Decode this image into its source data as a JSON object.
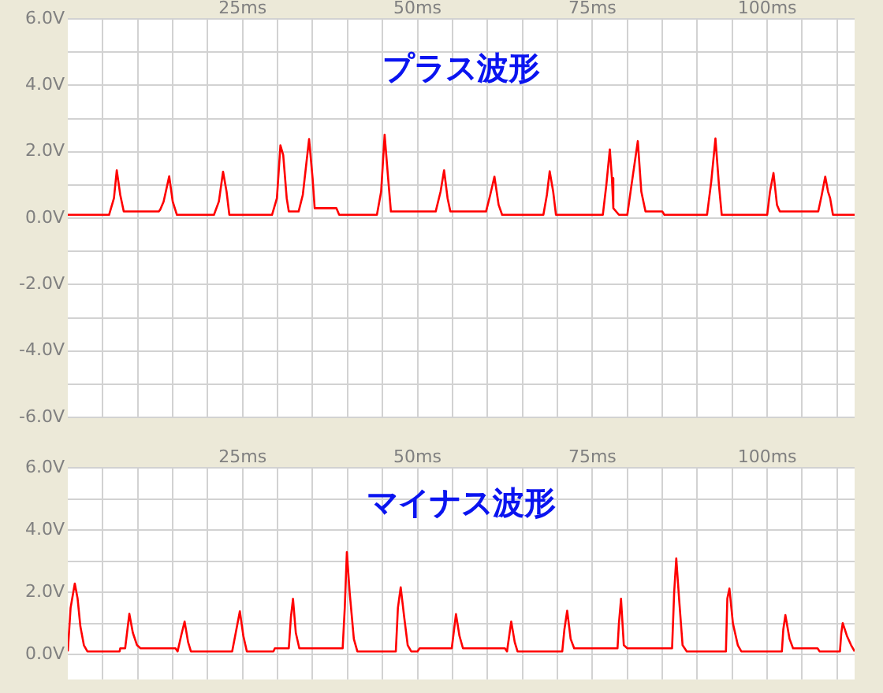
{
  "chart_data": [
    {
      "type": "line",
      "title": "プラス波形",
      "x": [
        0,
        5.9,
        6.6,
        7.0,
        7.5,
        8.0,
        13.0,
        13.2,
        13.7,
        14.5,
        15.0,
        15.6,
        20.9,
        21.6,
        22.2,
        22.7,
        23.1,
        29.2,
        29.9,
        30.4,
        30.8,
        31.3,
        31.6,
        33.0,
        33.6,
        34.5,
        35.0,
        35.3,
        38.4,
        38.8,
        44.2,
        44.8,
        45.3,
        45.8,
        46.2,
        52.6,
        53.3,
        53.8,
        54.3,
        54.7,
        59.8,
        60.4,
        61.0,
        61.6,
        62.1,
        68.0,
        68.5,
        68.9,
        69.4,
        69.8,
        76.5,
        77.0,
        77.5,
        77.8,
        78.0,
        78.8,
        80.0,
        80.6,
        81.5,
        82.0,
        82.6,
        85.0,
        85.3,
        91.4,
        92.0,
        92.6,
        93.1,
        93.5,
        100.0,
        100.4,
        100.9,
        101.4,
        101.8,
        107.3,
        107.8,
        108.3,
        108.7,
        109.0,
        109.4,
        112.5
      ],
      "series": [
        {
          "color": "#ff0000",
          "values": [
            0.1,
            0.1,
            0.6,
            1.44,
            0.7,
            0.2,
            0.2,
            0.25,
            0.5,
            1.26,
            0.5,
            0.1,
            0.1,
            0.5,
            1.4,
            0.8,
            0.1,
            0.1,
            0.6,
            2.19,
            1.9,
            0.6,
            0.2,
            0.2,
            0.7,
            2.38,
            1.2,
            0.3,
            0.3,
            0.1,
            0.1,
            0.8,
            2.51,
            1.2,
            0.2,
            0.2,
            0.8,
            1.44,
            0.6,
            0.2,
            0.2,
            0.7,
            1.25,
            0.4,
            0.1,
            0.1,
            0.7,
            1.41,
            0.8,
            0.1,
            0.1,
            1.0,
            2.07,
            1.2,
            0.3,
            0.1,
            0.1,
            1.0,
            2.32,
            0.8,
            0.2,
            0.2,
            0.1,
            0.1,
            1.1,
            2.4,
            1.0,
            0.1,
            0.1,
            0.8,
            1.36,
            0.4,
            0.2,
            0.2,
            0.7,
            1.25,
            0.8,
            0.6,
            0.1,
            0.1
          ]
        }
      ],
      "xlim": [
        0,
        112.5
      ],
      "xticks": [
        {
          "value": 5,
          "label": null
        },
        {
          "value": 10,
          "label": null
        },
        {
          "value": 15,
          "label": null
        },
        {
          "value": 20,
          "label": null
        },
        {
          "value": 25,
          "label": "25ms"
        },
        {
          "value": 30,
          "label": null
        },
        {
          "value": 35,
          "label": null
        },
        {
          "value": 40,
          "label": null
        },
        {
          "value": 45,
          "label": null
        },
        {
          "value": 50,
          "label": "50ms"
        },
        {
          "value": 55,
          "label": null
        },
        {
          "value": 60,
          "label": null
        },
        {
          "value": 65,
          "label": null
        },
        {
          "value": 70,
          "label": null
        },
        {
          "value": 75,
          "label": "75ms"
        },
        {
          "value": 80,
          "label": null
        },
        {
          "value": 85,
          "label": null
        },
        {
          "value": 90,
          "label": null
        },
        {
          "value": 95,
          "label": null
        },
        {
          "value": 100,
          "label": "100ms"
        },
        {
          "value": 105,
          "label": null
        },
        {
          "value": 110,
          "label": null
        }
      ],
      "ylim": [
        -6,
        6
      ],
      "yticks": [
        {
          "value": -6,
          "label": "-6.0V"
        },
        {
          "value": -5,
          "label": null
        },
        {
          "value": -4,
          "label": "-4.0V"
        },
        {
          "value": -3,
          "label": null
        },
        {
          "value": -2,
          "label": "-2.0V"
        },
        {
          "value": -1,
          "label": null
        },
        {
          "value": 0,
          "label": "0.0V"
        },
        {
          "value": 1,
          "label": null
        },
        {
          "value": 2,
          "label": "2.0V"
        },
        {
          "value": 3,
          "label": null
        },
        {
          "value": 4,
          "label": "4.0V"
        },
        {
          "value": 5,
          "label": null
        },
        {
          "value": 6,
          "label": "6.0V"
        }
      ],
      "grid": true,
      "marker": "none"
    },
    {
      "type": "line",
      "title": "マイナス波形",
      "x": [
        0,
        0.4,
        1.0,
        1.4,
        1.8,
        2.3,
        2.8,
        7.4,
        7.5,
        8.2,
        8.8,
        9.3,
        9.9,
        10.4,
        15.4,
        15.7,
        16.2,
        16.7,
        17.2,
        17.6,
        23.5,
        24.1,
        24.6,
        25.1,
        25.6,
        29.4,
        29.6,
        31.6,
        31.9,
        32.2,
        32.6,
        33.1,
        39.3,
        39.6,
        39.9,
        40.3,
        40.9,
        41.4,
        46.9,
        47.2,
        47.6,
        48.1,
        48.6,
        49.1,
        50.0,
        50.3,
        54.9,
        55.5,
        56.0,
        56.5,
        62.5,
        62.8,
        63.4,
        63.9,
        64.3,
        70.7,
        71.0,
        71.4,
        71.9,
        72.4,
        78.6,
        78.8,
        79.1,
        79.5,
        80.0,
        86.4,
        86.7,
        87.0,
        87.4,
        87.9,
        88.5,
        94.1,
        94.3,
        94.6,
        95.1,
        95.8,
        96.3,
        102.1,
        102.3,
        102.6,
        103.2,
        103.7,
        107.2,
        107.5,
        110.4,
        110.6,
        110.8,
        111.4,
        112.0,
        112.5
      ],
      "series": [
        {
          "color": "#ff0000",
          "values": [
            0.1,
            1.5,
            2.28,
            1.8,
            0.9,
            0.3,
            0.1,
            0.1,
            0.2,
            0.2,
            1.31,
            0.7,
            0.3,
            0.2,
            0.2,
            0.1,
            0.6,
            1.06,
            0.4,
            0.1,
            0.1,
            0.8,
            1.39,
            0.6,
            0.1,
            0.1,
            0.2,
            0.2,
            1.2,
            1.79,
            0.7,
            0.2,
            0.2,
            1.5,
            3.29,
            2.0,
            0.5,
            0.1,
            0.1,
            1.5,
            2.16,
            1.2,
            0.3,
            0.1,
            0.1,
            0.2,
            0.2,
            1.3,
            0.6,
            0.2,
            0.2,
            0.1,
            1.06,
            0.4,
            0.1,
            0.1,
            0.8,
            1.41,
            0.5,
            0.2,
            0.2,
            1.0,
            1.79,
            0.3,
            0.2,
            0.2,
            2.0,
            3.09,
            1.8,
            0.3,
            0.1,
            0.1,
            1.8,
            2.12,
            1.0,
            0.3,
            0.1,
            0.1,
            0.8,
            1.27,
            0.5,
            0.2,
            0.2,
            0.1,
            0.1,
            0.7,
            1.01,
            0.6,
            0.3,
            0.1
          ]
        }
      ],
      "xlim": [
        0,
        112.5
      ],
      "xticks": [
        {
          "value": 5,
          "label": null
        },
        {
          "value": 10,
          "label": null
        },
        {
          "value": 15,
          "label": null
        },
        {
          "value": 20,
          "label": null
        },
        {
          "value": 25,
          "label": "25ms"
        },
        {
          "value": 30,
          "label": null
        },
        {
          "value": 35,
          "label": null
        },
        {
          "value": 40,
          "label": null
        },
        {
          "value": 45,
          "label": null
        },
        {
          "value": 50,
          "label": "50ms"
        },
        {
          "value": 55,
          "label": null
        },
        {
          "value": 60,
          "label": null
        },
        {
          "value": 65,
          "label": null
        },
        {
          "value": 70,
          "label": null
        },
        {
          "value": 75,
          "label": "75ms"
        },
        {
          "value": 80,
          "label": null
        },
        {
          "value": 85,
          "label": null
        },
        {
          "value": 90,
          "label": null
        },
        {
          "value": 95,
          "label": null
        },
        {
          "value": 100,
          "label": "100ms"
        },
        {
          "value": 105,
          "label": null
        },
        {
          "value": 110,
          "label": null
        }
      ],
      "ylim": [
        -0.8,
        6
      ],
      "yticks": [
        {
          "value": 0,
          "label": "0.0V"
        },
        {
          "value": 1,
          "label": null
        },
        {
          "value": 2,
          "label": "2.0V"
        },
        {
          "value": 3,
          "label": null
        },
        {
          "value": 4,
          "label": "4.0V"
        },
        {
          "value": 5,
          "label": null
        },
        {
          "value": 6,
          "label": "6.0V"
        }
      ],
      "grid": true,
      "marker": "none"
    }
  ]
}
